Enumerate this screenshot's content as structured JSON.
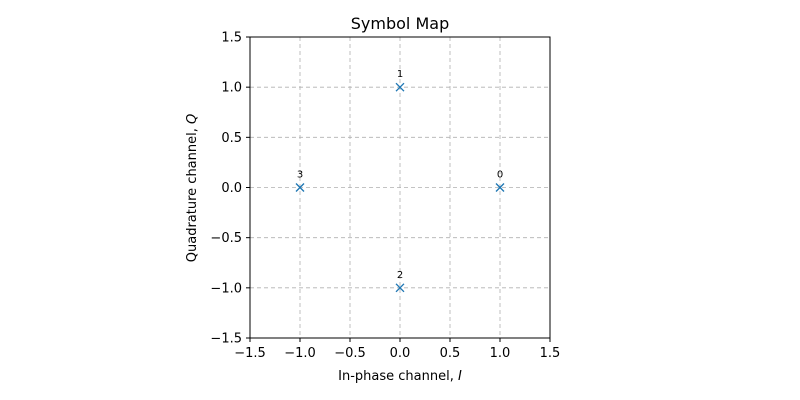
{
  "chart_data": {
    "type": "scatter",
    "title": "Symbol Map",
    "xlabel": "In-phase channel, ",
    "xlabel_symbol": "I",
    "ylabel": "Quadrature channel, ",
    "ylabel_symbol": "Q",
    "xlim": [
      -1.5,
      1.5
    ],
    "ylim": [
      -1.5,
      1.5
    ],
    "xticks": [
      -1.5,
      -1.0,
      -0.5,
      0.0,
      0.5,
      1.0,
      1.5
    ],
    "yticks": [
      -1.5,
      -1.0,
      -0.5,
      0.0,
      0.5,
      1.0,
      1.5
    ],
    "xtick_labels": [
      "−1.5",
      "−1.0",
      "−0.5",
      "0.0",
      "0.5",
      "1.0",
      "1.5"
    ],
    "ytick_labels": [
      "−1.5",
      "−1.0",
      "−0.5",
      "0.0",
      "0.5",
      "1.0",
      "1.5"
    ],
    "grid": true,
    "marker": "x",
    "color": "#1f77b4",
    "points": [
      {
        "x": 1.0,
        "y": 0.0,
        "label": "0"
      },
      {
        "x": 0.0,
        "y": 1.0,
        "label": "1"
      },
      {
        "x": 0.0,
        "y": -1.0,
        "label": "2"
      },
      {
        "x": -1.0,
        "y": 0.0,
        "label": "3"
      }
    ]
  }
}
